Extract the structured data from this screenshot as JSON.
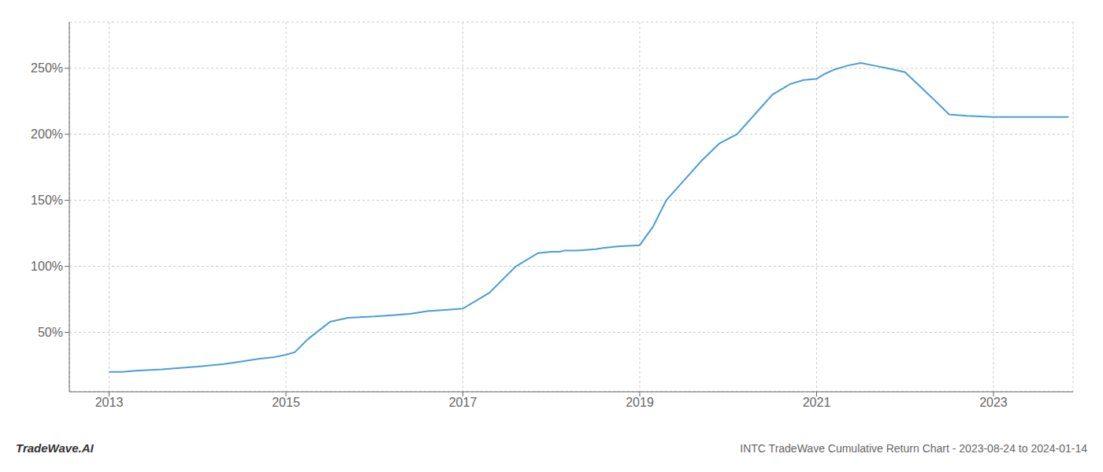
{
  "chart_data": {
    "type": "line",
    "title": "INTC TradeWave Cumulative Return Chart - 2023-08-24 to 2024-01-14",
    "annotations": [
      "TradeWave.AI"
    ],
    "x": [
      2013.0,
      2013.15,
      2013.3,
      2013.6,
      2014.0,
      2014.3,
      2014.5,
      2014.7,
      2014.85,
      2015.0,
      2015.1,
      2015.25,
      2015.5,
      2015.7,
      2016.0,
      2016.2,
      2016.4,
      2016.6,
      2016.8,
      2017.0,
      2017.3,
      2017.6,
      2017.85,
      2018.0,
      2018.1,
      2018.15,
      2018.3,
      2018.5,
      2018.6,
      2018.75,
      2019.0,
      2019.15,
      2019.3,
      2019.5,
      2019.7,
      2019.9,
      2020.1,
      2020.3,
      2020.5,
      2020.7,
      2020.85,
      2021.0,
      2021.1,
      2021.2,
      2021.35,
      2021.5,
      2021.65,
      2021.8,
      2022.0,
      2022.3,
      2022.5,
      2022.7,
      2023.0,
      2023.3,
      2023.6,
      2023.85
    ],
    "values": [
      20,
      20,
      21,
      22,
      24,
      26,
      28,
      30,
      31,
      33,
      35,
      45,
      58,
      61,
      62,
      63,
      64,
      66,
      67,
      68,
      80,
      100,
      110,
      111,
      111,
      112,
      112,
      113,
      114,
      115,
      116,
      130,
      150,
      165,
      180,
      193,
      200,
      215,
      230,
      238,
      241,
      242,
      246,
      249,
      252,
      254,
      252,
      250,
      247,
      228,
      215,
      214,
      213,
      213,
      213,
      213
    ],
    "color": "#4a9fd4",
    "xlim": [
      2012.55,
      2023.9
    ],
    "ylim": [
      5,
      285
    ],
    "xticks": [
      2013,
      2015,
      2017,
      2019,
      2021,
      2023
    ],
    "yticks": [
      {
        "value": 50,
        "label": "50%"
      },
      {
        "value": 100,
        "label": "100%"
      },
      {
        "value": 150,
        "label": "150%"
      },
      {
        "value": 200,
        "label": "200%"
      },
      {
        "value": 250,
        "label": "250%"
      }
    ],
    "grid": true
  }
}
